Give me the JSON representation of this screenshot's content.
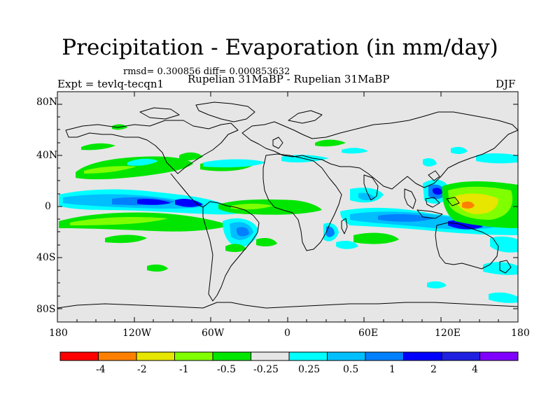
{
  "title": "Precipitation - Evaporation (in mm/day)",
  "stats": "rmsd= 0.300856 diff= 0.000853632",
  "expt": "Expt = tevlq-tecqn1",
  "experiment_names": "Rupelian  31MaBP - Rupelian  31MaBP",
  "season": "DJF",
  "lat_ticks": [
    "80N",
    "40N",
    "0",
    "40S",
    "80S"
  ],
  "lon_ticks": [
    "180",
    "120W",
    "60W",
    "0",
    "60E",
    "120E",
    "180"
  ],
  "colorbar": {
    "colors": [
      "#ff0000",
      "#ff8000",
      "#e6e600",
      "#80ff00",
      "#00e600",
      "#e6e6e6",
      "#00ffff",
      "#00bfff",
      "#0080ff",
      "#0000ff",
      "#2020e0",
      "#8000ff"
    ],
    "labels": [
      "-4",
      "-2",
      "-1",
      "-0.5",
      "-0.25",
      "0.25",
      "0.5",
      "1",
      "2",
      "4"
    ]
  },
  "colors": {
    "background": "#e6e6e6",
    "weak_positive": "#00ffff",
    "weak_negative": "#00e600",
    "moderate_negative": "#80ff00",
    "moderate_positive": "#00bfff",
    "strong_positive": "#0080ff",
    "strongest_positive": "#0000ff",
    "strong_negative": "#e6e600",
    "stronger_negative": "#ff8000"
  }
}
